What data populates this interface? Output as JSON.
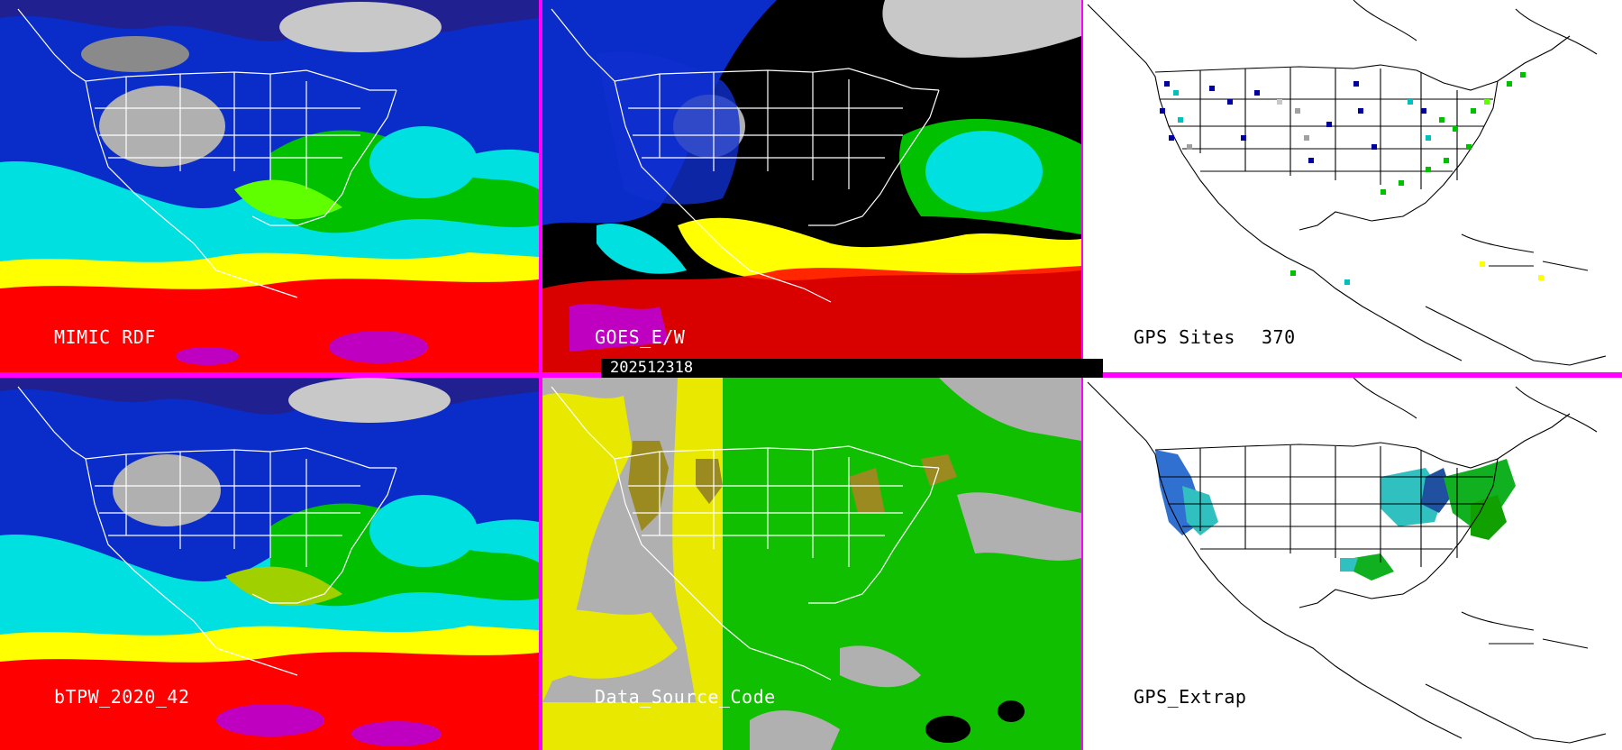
{
  "panels": {
    "mimic": {
      "label": "MIMIC RDF"
    },
    "goes": {
      "label": "GOES_E/W"
    },
    "gps_sites": {
      "label": "GPS Sites",
      "count": "370"
    },
    "bltpw": {
      "label": "bTPW_2020_42"
    },
    "data_source": {
      "label": "Data_Source_Code"
    },
    "gps_extrap": {
      "label": "GPS_Extrap"
    }
  },
  "timestamp": "202512318",
  "colors": {
    "separator": "#ff00ff",
    "moisture_scale": [
      "#ffffff",
      "#a0a0a0",
      "#0000a0",
      "#1030d0",
      "#00e0e0",
      "#00c000",
      "#60ff00",
      "#ffff00",
      "#ff0000",
      "#c000c0"
    ],
    "data_source": {
      "background": "#b0b0b0",
      "west": "#e8e800",
      "east": "#10c000",
      "overlap": "#9a8a20"
    }
  },
  "icons": [
    "us-state-borders-map",
    "gps-site-markers"
  ]
}
